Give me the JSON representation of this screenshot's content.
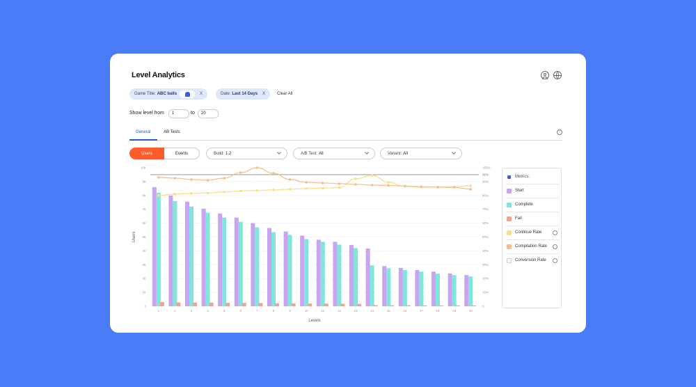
{
  "page": {
    "title": "Level Analytics",
    "background": "#4a7cf8"
  },
  "filters": {
    "game_title_label": "Game Title:",
    "game_title_value": "ABC balls",
    "game_platform_icon": "android-icon",
    "date_label": "Date:",
    "date_value": "Last 14 Days",
    "remove_symbol": "X",
    "clear_all": "Clear All"
  },
  "level_range": {
    "label": "Show level from",
    "from": "1",
    "to_label": "to",
    "to": "20"
  },
  "tabs": [
    {
      "label": "General",
      "active": true
    },
    {
      "label": "AB Tests",
      "active": false
    }
  ],
  "toggle": {
    "users": "Users",
    "events": "Events",
    "active": "Users",
    "active_color": "#ff5a2c"
  },
  "dropdowns": {
    "build": {
      "label": "Build:",
      "value": "1.2"
    },
    "ab_test": {
      "label": "A/B Test:",
      "value": "All"
    },
    "variant": {
      "label": "Variant:",
      "value": "All"
    }
  },
  "icons": {
    "header": [
      "user-icon",
      "globe-icon"
    ],
    "tab_info": "info-icon"
  },
  "legend": {
    "header": "Metrics:",
    "items": [
      {
        "label": "Start",
        "color": "#c8a4f2",
        "checked": true,
        "info": false
      },
      {
        "label": "Complete",
        "color": "#7fe6d9",
        "checked": true,
        "info": false
      },
      {
        "label": "Fail",
        "color": "#f4a28f",
        "checked": true,
        "info": false
      },
      {
        "label": "Continue Rate",
        "color": "#f8df8c",
        "checked": true,
        "info": true
      },
      {
        "label": "Compilation Rate",
        "color": "#f5bf8e",
        "checked": true,
        "info": true
      },
      {
        "label": "Conversion Rate",
        "color": "#ffffff",
        "checked": false,
        "info": true
      }
    ]
  },
  "chart_data": {
    "type": "bar",
    "title": "",
    "xlabel": "Levels",
    "ylabel": "Users",
    "categories": [
      "1",
      "2",
      "3",
      "4",
      "5",
      "6",
      "7",
      "8",
      "9",
      "10",
      "11",
      "12",
      "13",
      "14",
      "15",
      "16",
      "17",
      "18",
      "19",
      "20"
    ],
    "ylim": [
      0,
      10000
    ],
    "y_ticks": [
      "0",
      "1K",
      "2K",
      "3K",
      "4K",
      "5K",
      "6K",
      "7K",
      "8K",
      "9K",
      "10K"
    ],
    "y2lim": [
      0,
      100
    ],
    "y2_ticks": [
      "0",
      "10%",
      "20%",
      "30%",
      "40%",
      "50%",
      "60%",
      "70%",
      "80%",
      "90%",
      "100%"
    ],
    "reference_line": {
      "value": 95,
      "label": "95%"
    },
    "series": [
      {
        "name": "Start",
        "kind": "bar",
        "color": "#c8a4f2",
        "values": [
          8600,
          8000,
          7550,
          7050,
          6700,
          6400,
          6000,
          5650,
          5400,
          5100,
          4800,
          4650,
          4420,
          4170,
          2900,
          2770,
          2620,
          2500,
          2370,
          2250
        ]
      },
      {
        "name": "Complete",
        "kind": "bar",
        "color": "#7fe6d9",
        "values": [
          8200,
          7600,
          7200,
          6750,
          6400,
          6100,
          5700,
          5350,
          5150,
          4850,
          4650,
          4450,
          4200,
          2950,
          2750,
          2620,
          2500,
          2350,
          2250,
          2150
        ]
      },
      {
        "name": "Fail",
        "kind": "bar",
        "color": "#f4a28f",
        "values": [
          300,
          280,
          270,
          260,
          250,
          240,
          230,
          220,
          210,
          200,
          190,
          180,
          170,
          80,
          70,
          70,
          60,
          60,
          60,
          60
        ]
      },
      {
        "name": "Continue Rate",
        "kind": "line",
        "color": "#f8df8c",
        "values": [
          80,
          81,
          81.5,
          81.8,
          82.5,
          83.2,
          83.6,
          84,
          84.5,
          85,
          85.3,
          85.7,
          92,
          94.5,
          89.5,
          86.5,
          86,
          86,
          86.3,
          87
        ]
      },
      {
        "name": "Compilation Rate",
        "kind": "line",
        "color": "#f5bf8e",
        "values": [
          93,
          92.5,
          91.5,
          91,
          92.5,
          96.5,
          100,
          96,
          91.5,
          89.5,
          89,
          88.5,
          88,
          87.5,
          87.2,
          86.8,
          86.3,
          86,
          85.8,
          84.5
        ]
      }
    ]
  }
}
